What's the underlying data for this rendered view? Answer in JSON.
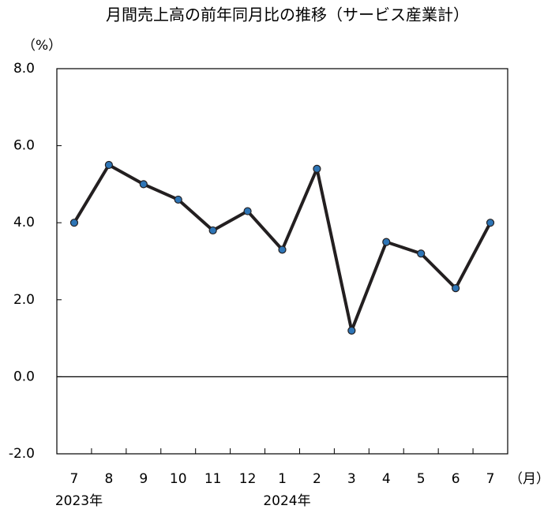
{
  "chart_data": {
    "type": "line",
    "title": "月間売上高の前年同月比の推移（サービス産業計）",
    "y_label": "（%）",
    "x_label": "（月）",
    "categories": [
      "7",
      "8",
      "9",
      "10",
      "11",
      "12",
      "1",
      "2",
      "3",
      "4",
      "5",
      "6",
      "7"
    ],
    "year_labels": [
      "2023年",
      null,
      null,
      null,
      null,
      null,
      "2024年",
      null,
      null,
      null,
      null,
      null,
      null
    ],
    "values": [
      4.0,
      5.5,
      5.0,
      4.6,
      3.8,
      4.3,
      3.3,
      5.4,
      1.2,
      3.5,
      3.2,
      2.3,
      4.0
    ],
    "line_color": "#231f20",
    "marker_color": "#2e75b6",
    "ylim": [
      -2,
      8
    ],
    "yticks": [
      {
        "value": -2,
        "label": "-2.0"
      },
      {
        "value": 0,
        "label": "0.0"
      },
      {
        "value": 2,
        "label": "2.0"
      },
      {
        "value": 4,
        "label": "4.0"
      },
      {
        "value": 6,
        "label": "6.0"
      },
      {
        "value": 8,
        "label": "8.0"
      }
    ],
    "grid": false
  }
}
